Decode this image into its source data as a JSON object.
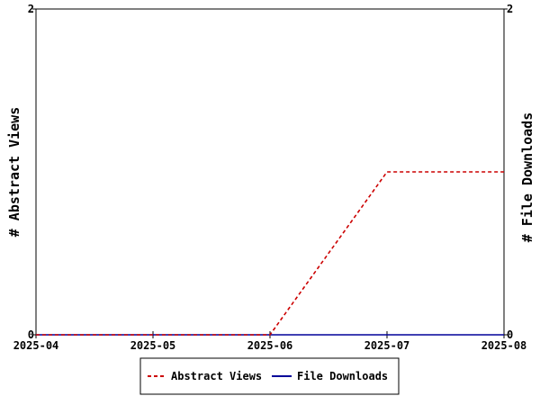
{
  "chart_data": {
    "type": "line",
    "x": [
      "2025-04",
      "2025-05",
      "2025-06",
      "2025-07",
      "2025-08"
    ],
    "y_left": {
      "label": "# Abstract Views",
      "range": [
        0,
        2
      ],
      "ticks": [
        "0",
        "2"
      ]
    },
    "y_right": {
      "label": "# File Downloads",
      "range": [
        0,
        2
      ],
      "ticks": [
        "0",
        "2"
      ]
    },
    "series": [
      {
        "name": "Abstract Views",
        "axis": "left",
        "color": "#cc0000",
        "style": "dashed",
        "values": [
          0,
          0,
          0,
          1,
          1
        ]
      },
      {
        "name": "File Downloads",
        "axis": "right",
        "color": "#000099",
        "style": "solid",
        "values": [
          0,
          0,
          0,
          0,
          0
        ]
      }
    ],
    "grid": false,
    "legend_position": "bottom"
  }
}
